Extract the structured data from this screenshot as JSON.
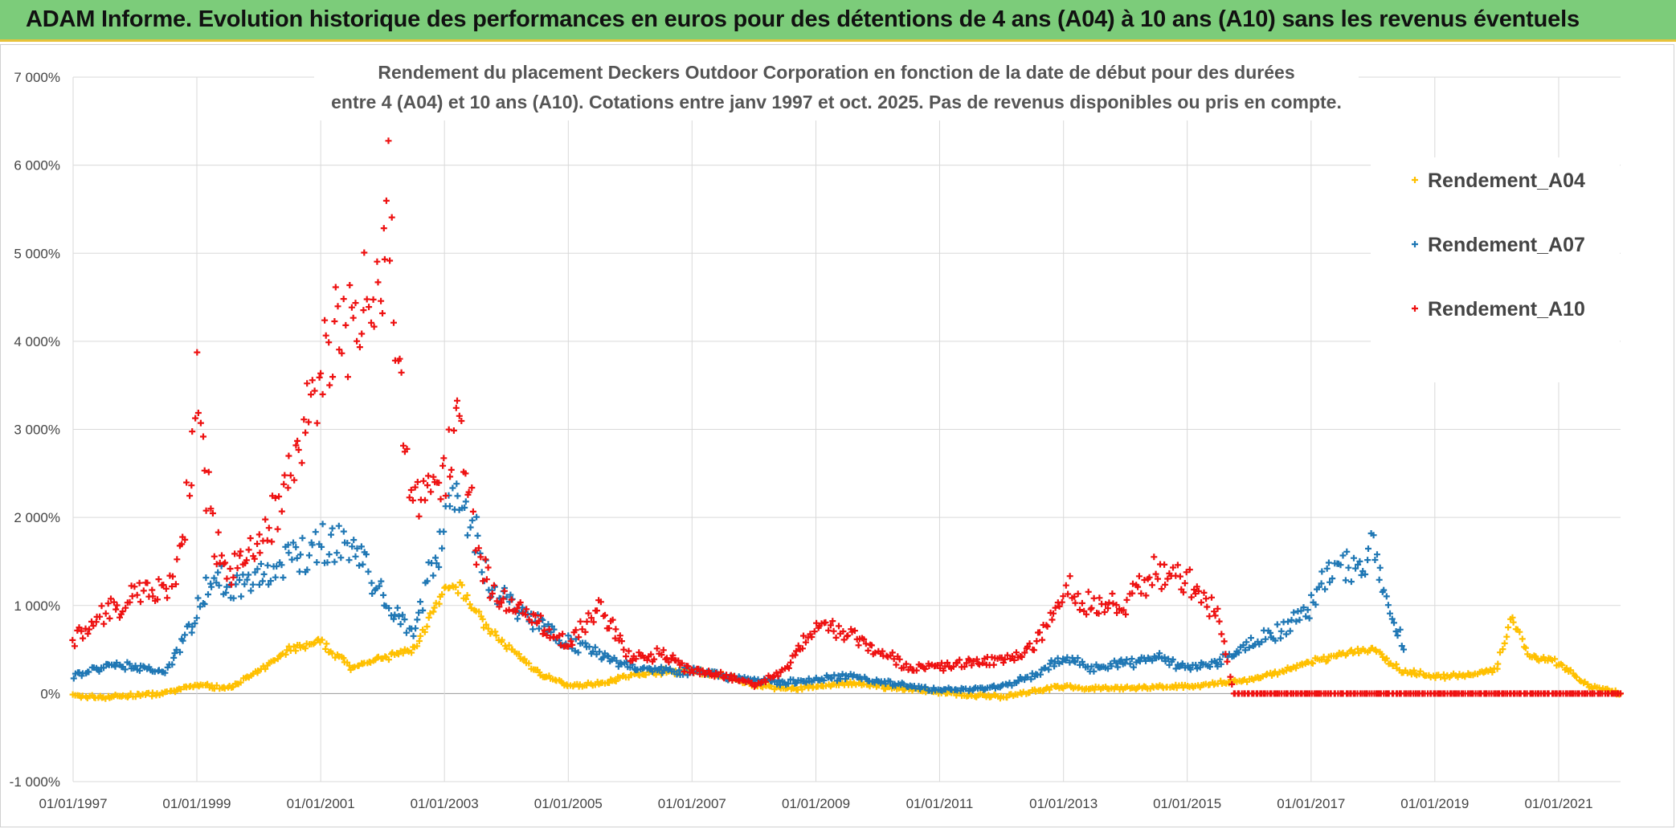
{
  "banner": {
    "title": "ADAM Informe. Evolution historique des performances en euros pour des détentions de 4 ans (A04) à 10 ans (A10) sans les revenus éventuels"
  },
  "colors": {
    "banner_bg": "#7ccc7a",
    "Rendement_A04": "#ffc000",
    "Rendement_A07": "#1f77b4",
    "Rendement_A10": "#ee1111"
  },
  "chart_data": {
    "type": "scatter",
    "title_lines": [
      "Rendement du placement Deckers Outdoor Corporation en fonction de la date de début pour des durées",
      "entre 4 (A04) et 10 ans (A10). Cotations entre janv 1997 et oct. 2025. Pas de revenus disponibles ou pris en compte."
    ],
    "marker": "+",
    "grid": true,
    "legend_position": "top-right",
    "x_type": "date",
    "xlim": [
      "1997-01-01",
      "2022-01-01"
    ],
    "x_tick_labels": [
      "01/01/1997",
      "01/01/1999",
      "01/01/2001",
      "01/01/2003",
      "01/01/2005",
      "01/01/2007",
      "01/01/2009",
      "01/01/2011",
      "01/01/2013",
      "01/01/2015",
      "01/01/2017",
      "01/01/2019",
      "01/01/2021"
    ],
    "x_ticks": [
      "1997-01-01",
      "1999-01-01",
      "2001-01-01",
      "2003-01-01",
      "2005-01-01",
      "2007-01-01",
      "2009-01-01",
      "2011-01-01",
      "2013-01-01",
      "2015-01-01",
      "2017-01-01",
      "2019-01-01",
      "2021-01-01"
    ],
    "ylim": [
      -1000,
      7000
    ],
    "y_ticks": [
      -1000,
      0,
      1000,
      2000,
      3000,
      4000,
      5000,
      6000,
      7000
    ],
    "y_tick_labels": [
      "-1 000%",
      "0%",
      "1 000%",
      "2 000%",
      "3 000%",
      "4 000%",
      "5 000%",
      "6 000%",
      "7 000%"
    ],
    "series": [
      {
        "name": "Rendement_A04",
        "color": "#ffc000",
        "points": [
          [
            "1997-01-01",
            -30
          ],
          [
            "1997-07-01",
            -40
          ],
          [
            "1998-01-01",
            -20
          ],
          [
            "1998-07-01",
            0
          ],
          [
            "1999-01-01",
            100
          ],
          [
            "1999-07-01",
            60
          ],
          [
            "2000-01-01",
            250
          ],
          [
            "2000-07-01",
            500
          ],
          [
            "2001-01-01",
            580
          ],
          [
            "2001-07-01",
            300
          ],
          [
            "2002-01-01",
            400
          ],
          [
            "2002-07-01",
            500
          ],
          [
            "2003-01-01",
            1150
          ],
          [
            "2003-04-01",
            1200
          ],
          [
            "2003-10-01",
            700
          ],
          [
            "2004-07-01",
            250
          ],
          [
            "2005-01-01",
            80
          ],
          [
            "2005-07-01",
            120
          ],
          [
            "2006-01-01",
            200
          ],
          [
            "2006-07-01",
            250
          ],
          [
            "2007-01-01",
            260
          ],
          [
            "2007-07-01",
            200
          ],
          [
            "2008-01-01",
            100
          ],
          [
            "2008-07-01",
            50
          ],
          [
            "2009-01-01",
            80
          ],
          [
            "2009-07-01",
            120
          ],
          [
            "2010-01-01",
            80
          ],
          [
            "2010-07-01",
            50
          ],
          [
            "2011-01-01",
            20
          ],
          [
            "2011-07-01",
            -20
          ],
          [
            "2012-01-01",
            -40
          ],
          [
            "2012-07-01",
            30
          ],
          [
            "2013-01-01",
            80
          ],
          [
            "2013-07-01",
            60
          ],
          [
            "2014-01-01",
            60
          ],
          [
            "2014-07-01",
            70
          ],
          [
            "2015-01-01",
            80
          ],
          [
            "2015-07-01",
            120
          ],
          [
            "2016-01-01",
            150
          ],
          [
            "2016-07-01",
            250
          ],
          [
            "2017-01-01",
            350
          ],
          [
            "2017-07-01",
            450
          ],
          [
            "2018-01-01",
            500
          ],
          [
            "2018-07-01",
            250
          ],
          [
            "2019-01-01",
            200
          ],
          [
            "2019-07-01",
            200
          ],
          [
            "2020-01-01",
            280
          ],
          [
            "2020-04-01",
            900
          ],
          [
            "2020-07-01",
            450
          ],
          [
            "2021-01-01",
            350
          ],
          [
            "2021-07-01",
            80
          ],
          [
            "2022-01-01",
            0
          ]
        ]
      },
      {
        "name": "Rendement_A07",
        "color": "#1f77b4",
        "points": [
          [
            "1997-01-01",
            200
          ],
          [
            "1997-07-01",
            300
          ],
          [
            "1998-01-01",
            300
          ],
          [
            "1998-07-01",
            250
          ],
          [
            "1999-01-01",
            900
          ],
          [
            "1999-04-01",
            1400
          ],
          [
            "1999-07-01",
            1200
          ],
          [
            "2000-01-01",
            1300
          ],
          [
            "2000-07-01",
            1500
          ],
          [
            "2001-01-01",
            1700
          ],
          [
            "2001-07-01",
            1700
          ],
          [
            "2002-01-01",
            1100
          ],
          [
            "2002-07-01",
            700
          ],
          [
            "2003-01-01",
            1900
          ],
          [
            "2003-04-01",
            2400
          ],
          [
            "2003-10-01",
            1200
          ],
          [
            "2004-07-01",
            800
          ],
          [
            "2005-01-01",
            600
          ],
          [
            "2005-07-01",
            450
          ],
          [
            "2006-01-01",
            300
          ],
          [
            "2006-07-01",
            280
          ],
          [
            "2007-01-01",
            250
          ],
          [
            "2007-07-01",
            200
          ],
          [
            "2008-01-01",
            150
          ],
          [
            "2008-07-01",
            120
          ],
          [
            "2009-01-01",
            150
          ],
          [
            "2009-07-01",
            200
          ],
          [
            "2010-01-01",
            150
          ],
          [
            "2010-07-01",
            80
          ],
          [
            "2011-01-01",
            40
          ],
          [
            "2011-07-01",
            50
          ],
          [
            "2012-01-01",
            80
          ],
          [
            "2012-07-01",
            200
          ],
          [
            "2013-01-01",
            400
          ],
          [
            "2013-07-01",
            300
          ],
          [
            "2014-01-01",
            350
          ],
          [
            "2014-07-01",
            400
          ],
          [
            "2015-01-01",
            300
          ],
          [
            "2015-07-01",
            350
          ],
          [
            "2016-01-01",
            600
          ],
          [
            "2016-07-01",
            700
          ],
          [
            "2017-01-01",
            1000
          ],
          [
            "2017-04-01",
            1400
          ],
          [
            "2017-10-01",
            1450
          ],
          [
            "2018-01-01",
            1600
          ],
          [
            "2018-04-01",
            1000
          ],
          [
            "2018-07-01",
            500
          ]
        ]
      },
      {
        "name": "Rendement_A10",
        "color": "#ee1111",
        "points": [
          [
            "1997-01-01",
            600
          ],
          [
            "1997-07-01",
            900
          ],
          [
            "1998-01-01",
            1100
          ],
          [
            "1998-07-01",
            1150
          ],
          [
            "1998-10-01",
            1500
          ],
          [
            "1999-01-01",
            3500
          ],
          [
            "1999-04-01",
            1800
          ],
          [
            "1999-07-01",
            1400
          ],
          [
            "2000-01-01",
            1600
          ],
          [
            "2000-07-01",
            2500
          ],
          [
            "2000-10-01",
            3100
          ],
          [
            "2001-01-01",
            3600
          ],
          [
            "2001-04-01",
            4200
          ],
          [
            "2001-07-01",
            4100
          ],
          [
            "2002-01-01",
            5000
          ],
          [
            "2002-02-01",
            5900
          ],
          [
            "2002-04-01",
            3500
          ],
          [
            "2002-07-01",
            2300
          ],
          [
            "2003-01-01",
            2500
          ],
          [
            "2003-04-01",
            3000
          ],
          [
            "2003-07-01",
            1800
          ],
          [
            "2003-10-01",
            1200
          ],
          [
            "2004-07-01",
            800
          ],
          [
            "2005-01-01",
            550
          ],
          [
            "2005-07-01",
            1000
          ],
          [
            "2006-01-01",
            400
          ],
          [
            "2006-07-01",
            450
          ],
          [
            "2007-01-01",
            250
          ],
          [
            "2007-07-01",
            200
          ],
          [
            "2008-01-01",
            100
          ],
          [
            "2008-07-01",
            250
          ],
          [
            "2009-01-01",
            800
          ],
          [
            "2009-07-01",
            700
          ],
          [
            "2010-01-01",
            500
          ],
          [
            "2010-07-01",
            300
          ],
          [
            "2011-01-01",
            300
          ],
          [
            "2011-07-01",
            350
          ],
          [
            "2012-01-01",
            380
          ],
          [
            "2012-07-01",
            500
          ],
          [
            "2013-01-01",
            1200
          ],
          [
            "2013-07-01",
            1000
          ],
          [
            "2014-01-01",
            1000
          ],
          [
            "2014-07-01",
            1400
          ],
          [
            "2015-01-01",
            1300
          ],
          [
            "2015-07-01",
            900
          ],
          [
            "2015-10-01",
            0
          ],
          [
            "2016-07-01",
            0
          ],
          [
            "2017-07-01",
            0
          ],
          [
            "2018-07-01",
            0
          ],
          [
            "2019-07-01",
            0
          ],
          [
            "2020-07-01",
            0
          ],
          [
            "2021-07-01",
            0
          ],
          [
            "2022-01-01",
            0
          ]
        ]
      }
    ]
  }
}
